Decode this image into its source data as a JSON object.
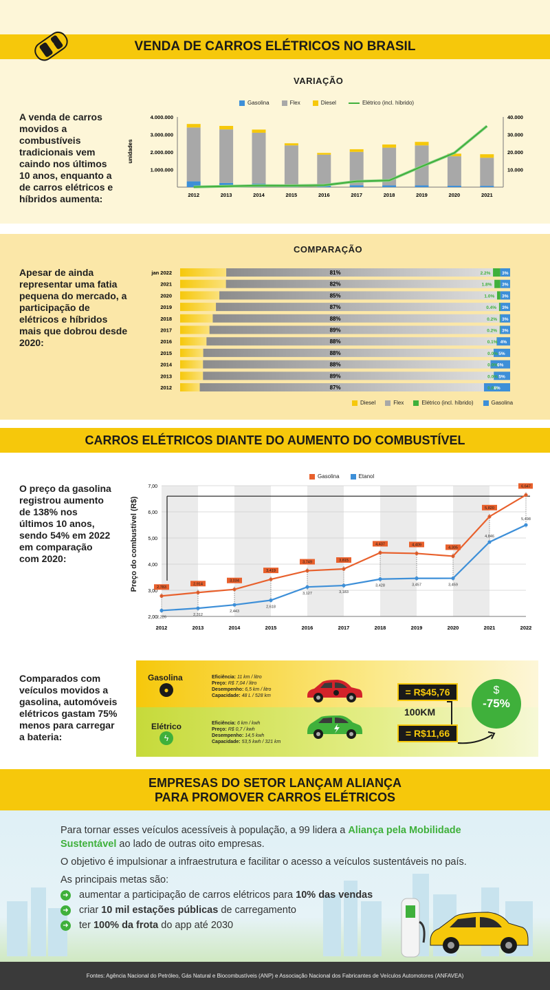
{
  "header": {
    "title": "VENDA DE CARROS ELÉTRICOS NO BRASIL"
  },
  "variacao": {
    "title": "VARIAÇÃO",
    "lead": "A venda de carros movidos a combustíveis tradicionais vem caindo nos últimos 10 anos, enquanto a de carros elétricos e híbridos aumenta:",
    "ylabel": "unidades",
    "legend": [
      "Gasolina",
      "Flex",
      "Diesel",
      "Elétrico (incl. híbrido)"
    ],
    "left_ticks": [
      "4.000.000",
      "3.000.000",
      "2.000.000",
      "1.000.000"
    ],
    "right_ticks": [
      "40.000",
      "30.000",
      "20.000",
      "10.000"
    ]
  },
  "comparacao": {
    "title": "COMPARAÇÃO",
    "lead": "Apesar de ainda representar uma fatia pequena do mercado, a participação de elétricos e híbridos mais que dobrou desde 2020:",
    "legend": [
      "Diesel",
      "Flex",
      "Elétrico (incl. híbrido)",
      "Gasolina"
    ]
  },
  "combustivel": {
    "banner": "CARROS ELÉTRICOS DIANTE DO AUMENTO DO COMBUSTÍVEL",
    "lead": "O preço da gasolina registrou aumento de 138% nos últimos 10 anos, sendo 54% em 2022 em comparação com 2020:",
    "ylabel": "Preço do combustível (R$)",
    "legend": [
      "Gasolina",
      "Etanol"
    ]
  },
  "comparativo": {
    "lead": "Comparados com veículos movidos a gasolina, automóveis elétricos gastam 75% menos para carregar a bateria:",
    "gasolina": {
      "label": "Gasolina",
      "l1": "Eficiência:",
      "v1": "11 km / litro",
      "l2": "Preço:",
      "v2": "R$ 7,04 / litro",
      "l3": "Desempenho:",
      "v3": "6,5 km / litro",
      "l4": "Capacidade:",
      "v4": "48 L / 528 km"
    },
    "eletrico": {
      "label": "Elétrico",
      "l1": "Eficiência:",
      "v1": "6 km / kwh",
      "l2": "Preço:",
      "v2": "R$ 0,7 / kwh",
      "l3": "Desempenho:",
      "v3": "14,5 kwh",
      "l4": "Capacidade:",
      "v4": "53,5 kwh / 321 km"
    },
    "price_gas": "= R$45,76",
    "distance": "100KM",
    "price_ele": "= R$11,66",
    "saving": "-75%"
  },
  "alianca": {
    "banner1": "EMPRESAS DO SETOR LANÇAM ALIANÇA",
    "banner2": "PARA PROMOVER CARROS ELÉTRICOS",
    "p1a": "Para tornar esses veículos acessíveis à população, a 99 lidera a ",
    "p1b": "Aliança pela Mobilidade Sustentável",
    "p1c": " ao lado de outras oito empresas.",
    "p2": "O objetivo é impulsionar a infraestrutura e facilitar o acesso a veículos sustentáveis no país.",
    "p3": "As principais metas são:",
    "g1a": "aumentar a participação de carros elétricos para ",
    "g1b": "10% das vendas",
    "g2a": "criar ",
    "g2b": "10 mil estações públicas",
    "g2c": " de carregamento",
    "g3a": "ter ",
    "g3b": "100% da frota",
    "g3c": " do app até 2030"
  },
  "footer": {
    "text": "Fontes: Agência Nacional do Petróleo, Gás Natural e Biocombustíveis (ANP) e Associação Nacional dos Fabricantes de Veículos Automotores (ANFAVEA)"
  },
  "colors": {
    "yellow": "#f6c80b",
    "flex": "#a8a8a8",
    "gasolina": "#3d8fd8",
    "eletrico": "#3fb03b",
    "orange": "#e8602c",
    "cream": "#fdf6d8"
  },
  "chart_data": [
    {
      "type": "bar",
      "title": "VARIAÇÃO",
      "ylabel": "unidades",
      "categories": [
        "2012",
        "2013",
        "2014",
        "2015",
        "2016",
        "2017",
        "2018",
        "2019",
        "2020",
        "2021"
      ],
      "ylim": [
        0,
        4000000
      ],
      "y2lim": [
        0,
        40000
      ],
      "series": [
        {
          "name": "Gasolina",
          "values": [
            330000,
            240000,
            200000,
            130000,
            100000,
            110000,
            100000,
            100000,
            80000,
            75000
          ]
        },
        {
          "name": "Flex",
          "values": [
            3070000,
            3050000,
            2900000,
            2250000,
            1750000,
            1900000,
            2150000,
            2280000,
            1680000,
            1600000
          ]
        },
        {
          "name": "Diesel",
          "values": [
            200000,
            200000,
            180000,
            120000,
            100000,
            150000,
            180000,
            200000,
            150000,
            200000
          ]
        },
        {
          "name": "Elétrico (incl. híbrido)",
          "axis": "right",
          "values": [
            100,
            500,
            900,
            850,
            1100,
            3300,
            3800,
            11800,
            19500,
            34800
          ]
        }
      ]
    },
    {
      "type": "bar",
      "title": "COMPARAÇÃO",
      "categories": [
        "jan 2022",
        "2021",
        "2020",
        "2019",
        "2018",
        "2017",
        "2016",
        "2015",
        "2014",
        "2013",
        "2012"
      ],
      "series": [
        {
          "name": "Diesel",
          "values": [
            14,
            14,
            12,
            11,
            10,
            9,
            8,
            7,
            7,
            7,
            6
          ]
        },
        {
          "name": "Flex",
          "values": [
            81,
            82,
            85,
            87,
            88,
            89,
            88,
            88,
            88,
            89,
            87
          ]
        },
        {
          "name": "Elétrico (incl. híbrido)",
          "values": [
            2.2,
            1.8,
            1.0,
            0.4,
            0.2,
            0.2,
            0.1,
            0.0,
            0.0,
            0.0,
            0.0
          ]
        },
        {
          "name": "Gasolina",
          "values": [
            3,
            3,
            3,
            3,
            3,
            3,
            4,
            5,
            6,
            5,
            8
          ]
        }
      ],
      "labels": {
        "flex": [
          "81%",
          "82%",
          "85%",
          "87%",
          "88%",
          "89%",
          "88%",
          "88%",
          "88%",
          "89%",
          "87%"
        ],
        "eletrico": [
          "2.2%",
          "1.8%",
          "1.0%",
          "0.4%",
          "0.2%",
          "0.2%",
          "0.1%",
          "0.0%",
          "0.0%",
          "0.0%",
          "0.0%"
        ],
        "gasolina": [
          "3%",
          "3%",
          "3%",
          "3%",
          "3%",
          "3%",
          "4%",
          "5%",
          "6%",
          "5%",
          "8%"
        ]
      }
    },
    {
      "type": "line",
      "ylabel": "Preço do combustível (R$)",
      "x": [
        "2012",
        "2013",
        "2014",
        "2015",
        "2016",
        "2017",
        "2018",
        "2019",
        "2020",
        "2021",
        "2022"
      ],
      "ylim": [
        2,
        7
      ],
      "yticks": [
        "2,00",
        "3,00",
        "4,00",
        "5,00",
        "6,00",
        "7,00"
      ],
      "series": [
        {
          "name": "Gasolina",
          "values": [
            2.783,
            2.914,
            3.034,
            3.419,
            3.749,
            3.815,
            4.437,
            4.409,
            4.305,
            5.82,
            6.647
          ],
          "labels": [
            "2,783",
            "2,914",
            "3,034",
            "3,419",
            "3,749",
            "3,815",
            "4,437",
            "4,409",
            "4,305",
            "5,820",
            "6,647"
          ]
        },
        {
          "name": "Etanol",
          "values": [
            2.226,
            2.312,
            2.443,
            2.618,
            3.127,
            3.183,
            3.428,
            3.457,
            3.459,
            4.846,
            5.498
          ],
          "labels": [
            "2,226",
            "2,312",
            "2,443",
            "2,618",
            "3,127",
            "3,183",
            "3,428",
            "3,457",
            "3,459",
            "4,846",
            "5,498"
          ]
        }
      ]
    }
  ]
}
